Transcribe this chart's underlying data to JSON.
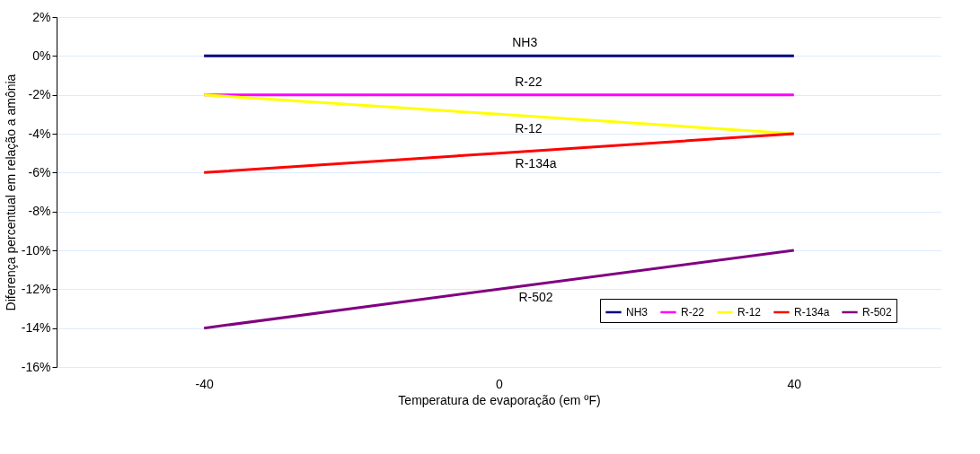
{
  "chart_data": {
    "type": "line",
    "xlabel": "Temperatura de evaporação (em ºF)",
    "ylabel": "Diferença percentual em relação a amônia",
    "x": [
      -40,
      0,
      40
    ],
    "series": [
      {
        "name": "NH3",
        "color": "#000080",
        "values": [
          0,
          0,
          0
        ]
      },
      {
        "name": "R-22",
        "color": "#ff00ff",
        "values": [
          -2,
          -2,
          -2
        ]
      },
      {
        "name": "R-12",
        "color": "#ffff00",
        "values": [
          -2,
          -3,
          -4
        ]
      },
      {
        "name": "R-134a",
        "color": "#ff0000",
        "values": [
          -6,
          -5,
          -4
        ]
      },
      {
        "name": "R-502",
        "color": "#800080",
        "values": [
          -14,
          -12,
          -10
        ]
      }
    ],
    "annotations": [
      {
        "text": "NH3",
        "x": 3.5,
        "y": 0
      },
      {
        "text": "R-22",
        "x": 4,
        "y": -2
      },
      {
        "text": "R-12",
        "x": 4,
        "y": -3.1
      },
      {
        "text": "R-134a",
        "x": 5,
        "y": -4.9
      },
      {
        "text": "R-502",
        "x": 5,
        "y": -11.8
      }
    ],
    "xlim": [
      -60,
      60
    ],
    "xticks": [
      -40,
      0,
      40
    ],
    "ylim": [
      -16,
      2
    ],
    "yticks": [
      {
        "value": 2,
        "label": "2%"
      },
      {
        "value": 0,
        "label": "0%"
      },
      {
        "value": -2,
        "label": "-2%"
      },
      {
        "value": -4,
        "label": "-4%"
      },
      {
        "value": -6,
        "label": "-6%"
      },
      {
        "value": -8,
        "label": "-8%"
      },
      {
        "value": -10,
        "label": "-10%"
      },
      {
        "value": -12,
        "label": "-12%"
      },
      {
        "value": -14,
        "label": "-14%"
      },
      {
        "value": -16,
        "label": "-16%"
      }
    ],
    "grid": "y",
    "legend": "bottom right",
    "marker": "none",
    "line_style": "solid"
  }
}
